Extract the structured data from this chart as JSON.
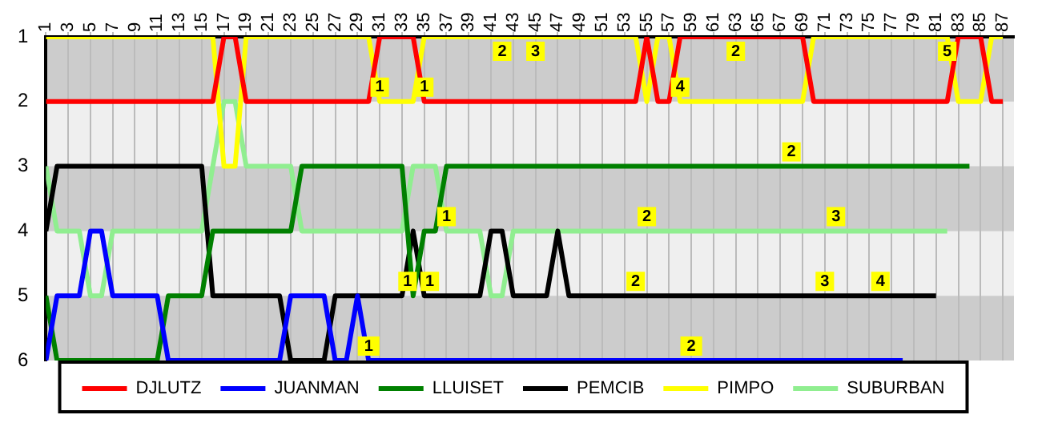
{
  "chart_data": {
    "type": "line",
    "marker": "none",
    "line_style": "solid",
    "grid": "x",
    "legend": "bottom",
    "x": [
      1,
      2,
      3,
      4,
      5,
      6,
      7,
      8,
      9,
      10,
      11,
      12,
      13,
      14,
      15,
      16,
      17,
      18,
      19,
      20,
      21,
      22,
      23,
      24,
      25,
      26,
      27,
      28,
      29,
      30,
      31,
      32,
      33,
      34,
      35,
      36,
      37,
      38,
      39,
      40,
      41,
      42,
      43,
      44,
      45,
      46,
      47,
      48,
      49,
      50,
      51,
      52,
      53,
      54,
      55,
      56,
      57,
      58,
      59,
      60,
      61,
      62,
      63,
      64,
      65,
      66,
      67,
      68,
      69,
      70,
      71,
      72,
      73,
      74,
      75,
      76,
      77,
      78,
      79,
      80,
      81,
      82,
      83,
      84,
      85,
      86,
      87
    ],
    "xlim": [
      1,
      88
    ],
    "xticks": [
      1,
      3,
      5,
      7,
      9,
      11,
      13,
      15,
      17,
      19,
      21,
      23,
      25,
      27,
      29,
      31,
      33,
      35,
      37,
      39,
      41,
      43,
      45,
      47,
      49,
      51,
      53,
      55,
      57,
      59,
      61,
      63,
      65,
      67,
      69,
      71,
      73,
      75,
      77,
      79,
      81,
      83,
      85,
      87
    ],
    "ylim": [
      6,
      1
    ],
    "yticks": [
      1,
      2,
      3,
      4,
      5,
      6
    ],
    "bands": [
      {
        "axis": "y",
        "from": 1,
        "to": 2,
        "color": "#cccccc"
      },
      {
        "axis": "y",
        "from": 3,
        "to": 4,
        "color": "#cccccc"
      },
      {
        "axis": "y",
        "from": 5,
        "to": 6,
        "color": "#cccccc"
      }
    ],
    "series": [
      {
        "name": "DJLUTZ",
        "color": "#ff0000",
        "values": [
          2,
          2,
          2,
          2,
          2,
          2,
          2,
          2,
          2,
          2,
          2,
          2,
          2,
          2,
          2,
          2,
          1,
          1,
          2,
          2,
          2,
          2,
          2,
          2,
          2,
          2,
          2,
          2,
          2,
          2,
          1,
          1,
          1,
          1,
          2,
          2,
          2,
          2,
          2,
          2,
          2,
          2,
          2,
          2,
          2,
          2,
          2,
          2,
          2,
          2,
          2,
          2,
          2,
          2,
          1,
          2,
          2,
          1,
          1,
          1,
          1,
          1,
          1,
          1,
          1,
          1,
          1,
          1,
          1,
          2,
          2,
          2,
          2,
          2,
          2,
          2,
          2,
          2,
          2,
          2,
          2,
          2,
          1,
          1,
          1,
          2,
          2
        ]
      },
      {
        "name": "JUANMAN",
        "color": "#0000ff",
        "values": [
          6,
          5,
          5,
          5,
          4,
          4,
          5,
          5,
          5,
          5,
          5,
          6,
          6,
          6,
          6,
          6,
          6,
          6,
          6,
          6,
          6,
          6,
          5,
          5,
          5,
          5,
          6,
          6,
          5,
          6,
          6,
          6,
          6,
          6,
          6,
          6,
          6,
          6,
          6,
          6,
          6,
          6,
          6,
          6,
          6,
          6,
          6,
          6,
          6,
          6,
          6,
          6,
          6,
          6,
          6,
          6,
          6,
          6,
          6,
          6,
          6,
          6,
          6,
          6,
          6,
          6,
          6,
          6,
          6,
          6,
          6,
          6,
          6,
          6,
          6,
          6,
          6,
          6,
          null,
          null,
          null,
          null,
          null,
          null,
          null,
          null,
          null
        ]
      },
      {
        "name": "LLUISET",
        "color": "#008000",
        "values": [
          5,
          6,
          6,
          6,
          6,
          6,
          6,
          6,
          6,
          6,
          6,
          5,
          5,
          5,
          5,
          4,
          4,
          4,
          4,
          4,
          4,
          4,
          4,
          3,
          3,
          3,
          3,
          3,
          3,
          3,
          3,
          3,
          3,
          5,
          4,
          4,
          3,
          3,
          3,
          3,
          3,
          3,
          3,
          3,
          3,
          3,
          3,
          3,
          3,
          3,
          3,
          3,
          3,
          3,
          3,
          3,
          3,
          3,
          3,
          3,
          3,
          3,
          3,
          3,
          3,
          3,
          3,
          3,
          3,
          3,
          3,
          3,
          3,
          3,
          3,
          3,
          3,
          3,
          3,
          3,
          3,
          3,
          3,
          3,
          null,
          null,
          null
        ]
      },
      {
        "name": "PEMCIB",
        "color": "#000000",
        "values": [
          4,
          3,
          3,
          3,
          3,
          3,
          3,
          3,
          3,
          3,
          3,
          3,
          3,
          3,
          3,
          5,
          5,
          5,
          5,
          5,
          5,
          5,
          6,
          6,
          6,
          6,
          5,
          5,
          5,
          5,
          5,
          5,
          5,
          4,
          5,
          5,
          5,
          5,
          5,
          5,
          4,
          4,
          5,
          5,
          5,
          5,
          4,
          5,
          5,
          5,
          5,
          5,
          5,
          5,
          5,
          5,
          5,
          5,
          5,
          5,
          5,
          5,
          5,
          5,
          5,
          5,
          5,
          5,
          5,
          5,
          5,
          5,
          5,
          5,
          5,
          5,
          5,
          5,
          5,
          5,
          5,
          null,
          null,
          null,
          null,
          null,
          null
        ]
      },
      {
        "name": "PIMPO",
        "color": "#ffff00",
        "values": [
          1,
          1,
          1,
          1,
          1,
          1,
          1,
          1,
          1,
          1,
          1,
          1,
          1,
          1,
          1,
          1,
          3,
          3,
          1,
          1,
          1,
          1,
          1,
          1,
          1,
          1,
          1,
          1,
          1,
          1,
          2,
          2,
          2,
          2,
          1,
          1,
          1,
          1,
          1,
          1,
          1,
          1,
          1,
          1,
          1,
          1,
          1,
          1,
          1,
          1,
          1,
          1,
          1,
          1,
          2,
          1,
          1,
          2,
          2,
          2,
          2,
          2,
          2,
          2,
          2,
          2,
          2,
          2,
          2,
          1,
          1,
          1,
          1,
          1,
          1,
          1,
          1,
          1,
          1,
          1,
          1,
          1,
          2,
          2,
          2,
          1,
          1
        ]
      },
      {
        "name": "SUBURBAN",
        "color": "#90ee90",
        "values": [
          3,
          4,
          4,
          4,
          5,
          5,
          4,
          4,
          4,
          4,
          4,
          4,
          4,
          4,
          4,
          3,
          2,
          2,
          3,
          3,
          3,
          3,
          3,
          4,
          4,
          4,
          4,
          4,
          4,
          4,
          4,
          4,
          4,
          3,
          3,
          3,
          4,
          4,
          4,
          4,
          5,
          5,
          4,
          4,
          4,
          4,
          4,
          4,
          4,
          4,
          4,
          4,
          4,
          4,
          4,
          4,
          4,
          4,
          4,
          4,
          4,
          4,
          4,
          4,
          4,
          4,
          4,
          4,
          4,
          4,
          4,
          4,
          4,
          4,
          4,
          4,
          4,
          4,
          4,
          4,
          4,
          4,
          null,
          null,
          null,
          null,
          null
        ]
      }
    ],
    "annotations": [
      {
        "text": "2",
        "x": 42,
        "y": 1
      },
      {
        "text": "3",
        "x": 45,
        "y": 1
      },
      {
        "text": "2",
        "x": 63,
        "y": 1
      },
      {
        "text": "5",
        "x": 82,
        "y": 1
      },
      {
        "text": "1",
        "x": 31,
        "y": 2
      },
      {
        "text": "1",
        "x": 35,
        "y": 2
      },
      {
        "text": "4",
        "x": 58,
        "y": 2
      },
      {
        "text": "2",
        "x": 68,
        "y": 3
      },
      {
        "text": "1",
        "x": 37,
        "y": 4
      },
      {
        "text": "2",
        "x": 55,
        "y": 4
      },
      {
        "text": "3",
        "x": 72,
        "y": 4
      },
      {
        "text": "1",
        "x": 33.5,
        "y": 5
      },
      {
        "text": "1",
        "x": 35.5,
        "y": 5
      },
      {
        "text": "2",
        "x": 54,
        "y": 5
      },
      {
        "text": "3",
        "x": 71,
        "y": 5
      },
      {
        "text": "4",
        "x": 76,
        "y": 5
      },
      "1",
      "2"
    ]
  }
}
